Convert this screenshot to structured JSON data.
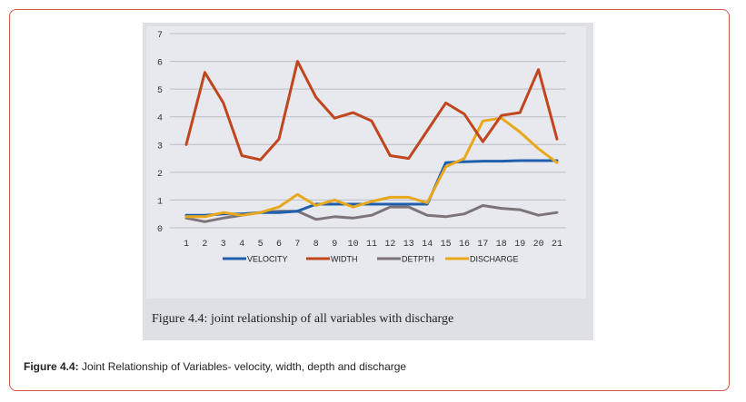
{
  "figure_caption": {
    "label": "Figure 4.4:",
    "text": " Joint Relationship of Variables- velocity, width, depth and discharge"
  },
  "photo_caption": "Figure 4.4: joint relationship of all variables with discharge",
  "chart_data": {
    "type": "line",
    "categories": [
      "1",
      "2",
      "3",
      "4",
      "5",
      "6",
      "7",
      "8",
      "9",
      "10",
      "11",
      "12",
      "13",
      "14",
      "15",
      "16",
      "17",
      "18",
      "19",
      "20",
      "21"
    ],
    "ylim": [
      0,
      7
    ],
    "yticks": [
      "0",
      "1",
      "2",
      "3",
      "4",
      "5",
      "6",
      "7"
    ],
    "grid": true,
    "legend_position": "bottom",
    "series": [
      {
        "name": "VELOCITY",
        "color": "#1f5fae",
        "values": [
          0.45,
          0.45,
          0.5,
          0.5,
          0.55,
          0.55,
          0.6,
          0.85,
          0.85,
          0.85,
          0.85,
          0.85,
          0.85,
          0.85,
          2.35,
          2.38,
          2.4,
          2.4,
          2.42,
          2.42,
          2.42
        ]
      },
      {
        "name": "WIDTH",
        "color": "#c0461e",
        "values": [
          3.0,
          5.6,
          4.5,
          2.6,
          2.45,
          3.2,
          6.0,
          4.7,
          3.95,
          4.15,
          3.85,
          2.6,
          2.5,
          3.5,
          4.5,
          4.1,
          3.1,
          4.05,
          4.15,
          5.7,
          3.2
        ]
      },
      {
        "name": "DETPTH",
        "color": "#7d7479",
        "values": [
          0.35,
          0.22,
          0.35,
          0.45,
          0.55,
          0.6,
          0.6,
          0.3,
          0.4,
          0.35,
          0.45,
          0.75,
          0.75,
          0.45,
          0.4,
          0.5,
          0.8,
          0.7,
          0.65,
          0.45,
          0.55
        ]
      },
      {
        "name": "DISCHARGE",
        "color": "#e9a81c",
        "values": [
          0.4,
          0.4,
          0.55,
          0.45,
          0.55,
          0.75,
          1.2,
          0.8,
          1.0,
          0.75,
          0.95,
          1.1,
          1.1,
          0.9,
          2.2,
          2.5,
          3.85,
          3.95,
          3.45,
          2.85,
          2.35
        ]
      }
    ]
  }
}
